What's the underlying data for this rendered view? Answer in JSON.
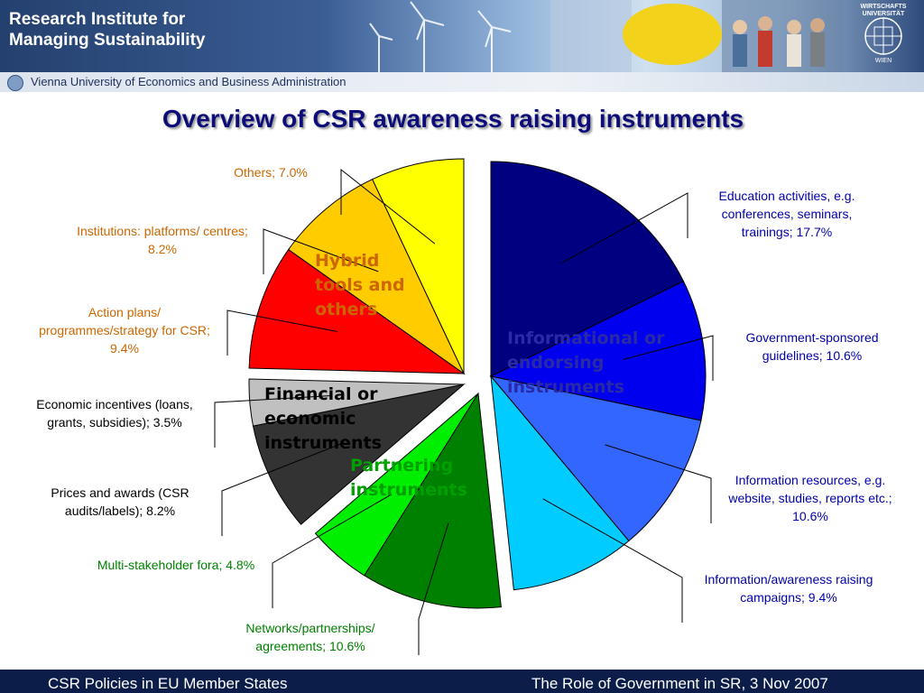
{
  "header": {
    "institute_line1": "Research Institute for",
    "institute_line2": "Managing Sustainability",
    "university": "Vienna University of Economics and Business Administration",
    "seal_top": "WIRTSCHAFTS UNIVERSITÄT",
    "seal_bottom": "WIEN"
  },
  "title": "Overview of CSR awareness raising instruments",
  "groups": {
    "informational": "Informational or endorsing instruments",
    "partnering": "Partnering instruments",
    "financial": "Financial or economic instruments",
    "hybrid": "Hybrid tools and others"
  },
  "chart_data": {
    "type": "pie",
    "slices": [
      {
        "label": "Education activities, e.g. conferences, seminars, trainings; 17.7%",
        "value": 17.7,
        "group": "informational",
        "color": "#000080"
      },
      {
        "label": "Government-sponsored guidelines; 10.6%",
        "value": 10.6,
        "group": "informational",
        "color": "#0000ee"
      },
      {
        "label": "Information resources, e.g. website, studies, reports etc.; 10.6%",
        "value": 10.6,
        "group": "informational",
        "color": "#3366ff"
      },
      {
        "label": "Information/awareness raising campaigns; 9.4%",
        "value": 9.4,
        "group": "informational",
        "color": "#00ccff"
      },
      {
        "label": "Networks/partnerships/ agreements; 10.6%",
        "value": 10.6,
        "group": "partnering",
        "color": "#008000"
      },
      {
        "label": "Multi-stakeholder fora; 4.8%",
        "value": 4.8,
        "group": "partnering",
        "color": "#00ee00"
      },
      {
        "label": "Prices and awards (CSR audits/labels); 8.2%",
        "value": 8.2,
        "group": "financial",
        "color": "#333333"
      },
      {
        "label": "Economic incentives (loans, grants, subsidies); 3.5%",
        "value": 3.5,
        "group": "financial",
        "color": "#c0c0c0"
      },
      {
        "label": "Action plans/ programmes/strategy for CSR; 9.4%",
        "value": 9.4,
        "group": "hybrid",
        "color": "#ff0000"
      },
      {
        "label": "Institutions: platforms/ centres; 8.2%",
        "value": 8.2,
        "group": "hybrid",
        "color": "#ffcc00"
      },
      {
        "label": "Others; 7.0%",
        "value": 7.0,
        "group": "hybrid",
        "color": "#ffff00"
      }
    ],
    "label_colors": {
      "informational": "#0000aa",
      "partnering": "#008000",
      "financial": "#000000",
      "hybrid": "#cc6600"
    }
  },
  "footer": {
    "left": "CSR Policies in EU Member States",
    "right": "The Role of Government in SR, 3 Nov 2007"
  }
}
